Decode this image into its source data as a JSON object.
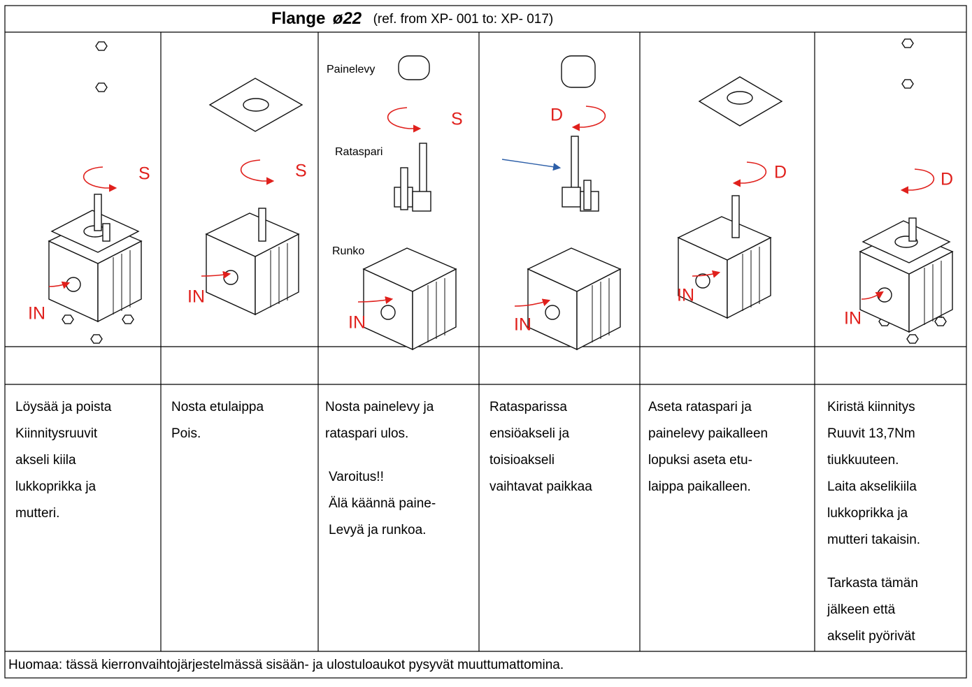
{
  "header": {
    "title": "Flange",
    "diameter": "ø22",
    "ref": "(ref. from XP- 001 to:  XP- 017)"
  },
  "columns": [
    {
      "figure_labels": [
        "S",
        "IN"
      ],
      "paragraphs": [
        [
          "Löysää ja poista",
          "Kiinnitysruuvit",
          "akseli kiila",
          "lukkoprikka ja",
          "mutteri."
        ]
      ]
    },
    {
      "figure_labels": [
        "S",
        "IN"
      ],
      "paragraphs": [
        [
          "Nosta etulaippa",
          "Pois."
        ]
      ]
    },
    {
      "figure_labels": [
        "Painelevy",
        "S",
        "Rataspari",
        "Runko",
        "IN"
      ],
      "paragraphs": [
        [
          "Nosta painelevy ja",
          "rataspari  ulos."
        ],
        [
          "Varoitus!!",
          "Älä käännä paine-",
          "Levyä ja runkoa."
        ]
      ]
    },
    {
      "figure_labels": [
        "D",
        "IN"
      ],
      "paragraphs": [
        [
          "Ratasparissa",
          "ensiöakseli  ja",
          "toisioakseli",
          "vaihtavat paikkaa"
        ]
      ]
    },
    {
      "figure_labels": [
        "D",
        "IN"
      ],
      "paragraphs": [
        [
          "Aseta rataspari ja",
          "painelevy paikalleen",
          "lopuksi aseta etu-",
          "laippa paikalleen."
        ]
      ]
    },
    {
      "figure_labels": [
        "D",
        "IN"
      ],
      "paragraphs": [
        [
          "Kiristä kiinnitys",
          "Ruuvit 13,7Nm",
          "tiukkuuteen.",
          "Laita akselikiila",
          "lukkoprikka ja",
          "mutteri takaisin."
        ],
        [
          "Tarkasta tämän",
          "jälkeen että",
          "akselit pyörivät"
        ]
      ]
    }
  ],
  "footer": "Huomaa: tässä kierronvaihtojärjestelmässä sisään- ja ulostuloaukot pysyvät muuttumattomina."
}
